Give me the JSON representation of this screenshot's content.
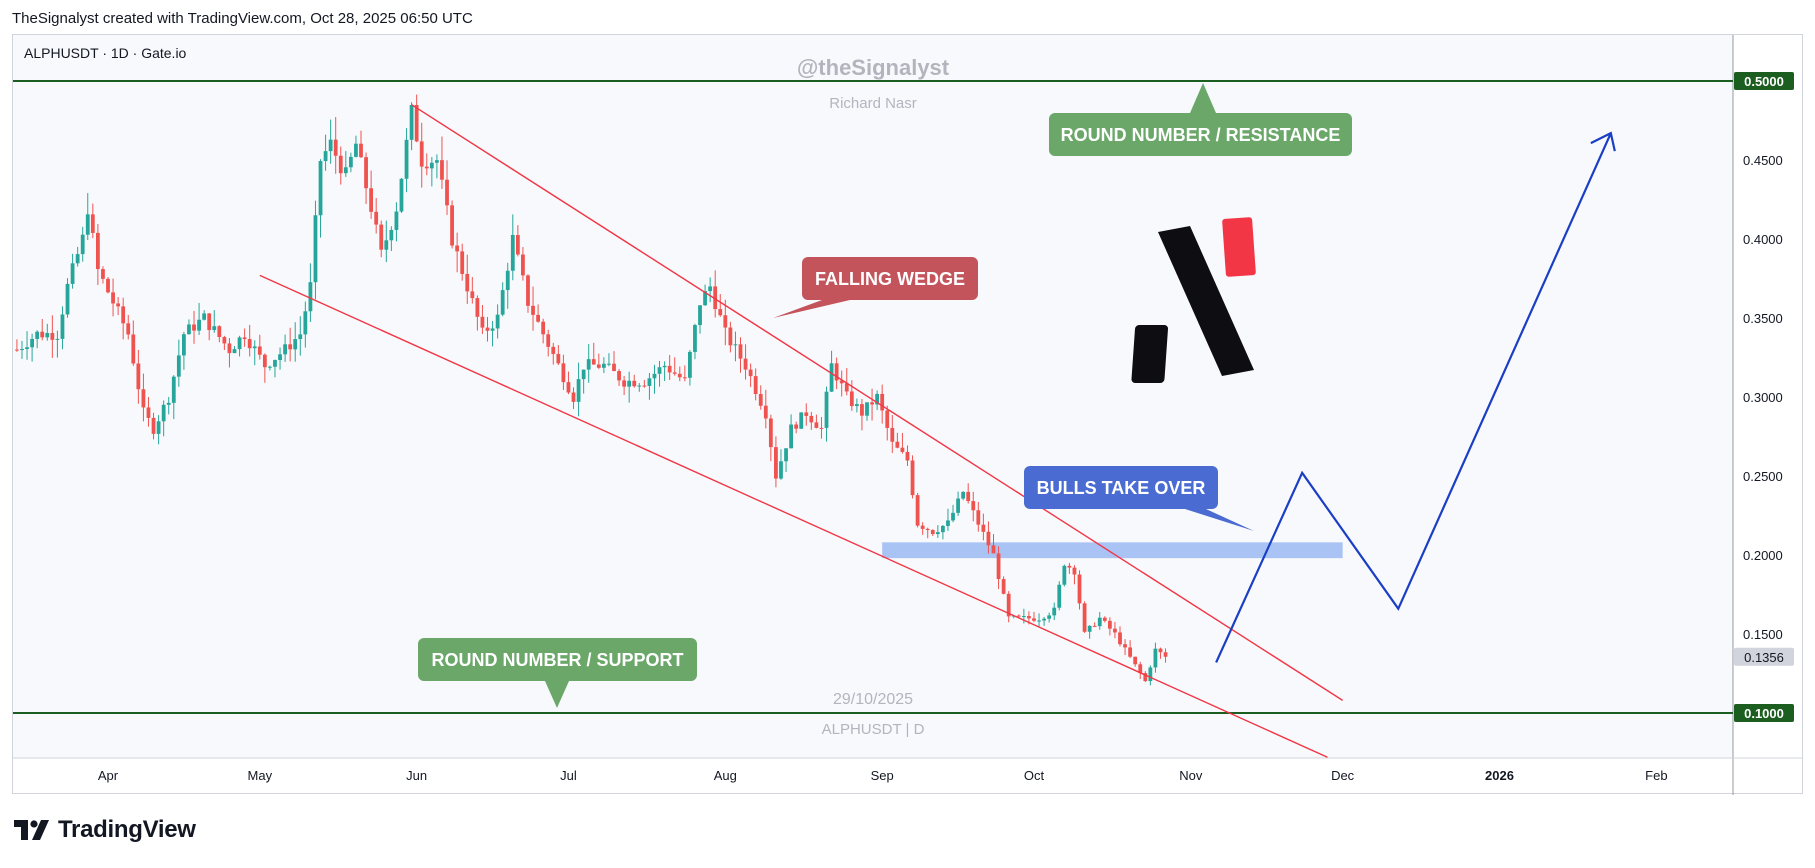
{
  "header": {
    "attribution": "TheSignalyst created with TradingView.com, Oct 28, 2025 06:50 UTC"
  },
  "footer": {
    "brand": "TradingView"
  },
  "chart_data": {
    "type": "candlestick",
    "symbol_label": "ALPHUSDT · 1D · Gate.io",
    "watermark": {
      "handle": "@theSignalyst",
      "author": "Richard Nasr",
      "date": "29/10/2025",
      "symbol": "ALPHUSDT | D"
    },
    "ylim": [
      0.072,
      0.55
    ],
    "price_scale": {
      "ticks": [
        "0.1500",
        "0.2000",
        "0.2500",
        "0.3000",
        "0.3500",
        "0.4000",
        "0.4500"
      ],
      "tick_values": [
        0.15,
        0.2,
        0.25,
        0.3,
        0.35,
        0.4,
        0.45
      ],
      "badges": [
        {
          "label": "0.5000",
          "value": 0.5,
          "color": "#1b5e20"
        },
        {
          "label": "0.1356",
          "value": 0.1356,
          "color": "#d1d4dc"
        },
        {
          "label": "0.1000",
          "value": 0.1,
          "color": "#1b5e20"
        }
      ]
    },
    "x_axis": {
      "labels": [
        "Apr",
        "May",
        "Jun",
        "Jul",
        "Aug",
        "Sep",
        "Oct",
        "Nov",
        "Dec",
        "2026",
        "Feb"
      ],
      "dates": [
        "2025-04-01",
        "2025-05-01",
        "2025-06-01",
        "2025-07-01",
        "2025-08-01",
        "2025-09-01",
        "2025-10-01",
        "2025-11-01",
        "2025-12-01",
        "2026-01-01",
        "2026-02-01"
      ]
    },
    "candles_range": [
      "2025-03-14",
      "2025-10-27"
    ],
    "price_path": [
      [
        "2025-03-14",
        0.33
      ],
      [
        "2025-03-18",
        0.34
      ],
      [
        "2025-03-22",
        0.34
      ],
      [
        "2025-03-24",
        0.37
      ],
      [
        "2025-03-27",
        0.4
      ],
      [
        "2025-03-28",
        0.42
      ],
      [
        "2025-03-30",
        0.38
      ],
      [
        "2025-04-02",
        0.36
      ],
      [
        "2025-04-05",
        0.34
      ],
      [
        "2025-04-08",
        0.29
      ],
      [
        "2025-04-10",
        0.28
      ],
      [
        "2025-04-13",
        0.3
      ],
      [
        "2025-04-16",
        0.34
      ],
      [
        "2025-04-20",
        0.35
      ],
      [
        "2025-04-25",
        0.33
      ],
      [
        "2025-04-28",
        0.34
      ],
      [
        "2025-05-02",
        0.32
      ],
      [
        "2025-05-06",
        0.33
      ],
      [
        "2025-05-09",
        0.34
      ],
      [
        "2025-05-11",
        0.37
      ],
      [
        "2025-05-13",
        0.45
      ],
      [
        "2025-05-15",
        0.46
      ],
      [
        "2025-05-18",
        0.44
      ],
      [
        "2025-05-20",
        0.46
      ],
      [
        "2025-05-23",
        0.42
      ],
      [
        "2025-05-25",
        0.39
      ],
      [
        "2025-05-28",
        0.42
      ],
      [
        "2025-05-31",
        0.48
      ],
      [
        "2025-06-02",
        0.45
      ],
      [
        "2025-06-05",
        0.45
      ],
      [
        "2025-06-08",
        0.4
      ],
      [
        "2025-06-11",
        0.37
      ],
      [
        "2025-06-14",
        0.34
      ],
      [
        "2025-06-17",
        0.35
      ],
      [
        "2025-06-20",
        0.4
      ],
      [
        "2025-06-23",
        0.36
      ],
      [
        "2025-06-26",
        0.34
      ],
      [
        "2025-06-29",
        0.32
      ],
      [
        "2025-07-02",
        0.3
      ],
      [
        "2025-07-04",
        0.32
      ],
      [
        "2025-07-08",
        0.32
      ],
      [
        "2025-07-12",
        0.31
      ],
      [
        "2025-07-16",
        0.31
      ],
      [
        "2025-07-20",
        0.32
      ],
      [
        "2025-07-24",
        0.31
      ],
      [
        "2025-07-27",
        0.36
      ],
      [
        "2025-07-29",
        0.37
      ],
      [
        "2025-08-01",
        0.34
      ],
      [
        "2025-08-05",
        0.32
      ],
      [
        "2025-08-09",
        0.29
      ],
      [
        "2025-08-11",
        0.25
      ],
      [
        "2025-08-14",
        0.28
      ],
      [
        "2025-08-17",
        0.29
      ],
      [
        "2025-08-20",
        0.28
      ],
      [
        "2025-08-22",
        0.32
      ],
      [
        "2025-08-25",
        0.3
      ],
      [
        "2025-08-28",
        0.29
      ],
      [
        "2025-08-31",
        0.3
      ],
      [
        "2025-09-03",
        0.27
      ],
      [
        "2025-09-06",
        0.26
      ],
      [
        "2025-09-08",
        0.22
      ],
      [
        "2025-09-11",
        0.215
      ],
      [
        "2025-09-14",
        0.22
      ],
      [
        "2025-09-17",
        0.24
      ],
      [
        "2025-09-20",
        0.22
      ],
      [
        "2025-09-23",
        0.2
      ],
      [
        "2025-09-26",
        0.16
      ],
      [
        "2025-09-29",
        0.16
      ],
      [
        "2025-10-02",
        0.16
      ],
      [
        "2025-10-05",
        0.165
      ],
      [
        "2025-10-07",
        0.195
      ],
      [
        "2025-10-09",
        0.19
      ],
      [
        "2025-10-11",
        0.15
      ],
      [
        "2025-10-14",
        0.16
      ],
      [
        "2025-10-17",
        0.15
      ],
      [
        "2025-10-20",
        0.135
      ],
      [
        "2025-10-23",
        0.12
      ],
      [
        "2025-10-25",
        0.14
      ],
      [
        "2025-10-27",
        0.1356
      ]
    ],
    "levels": [
      {
        "name": "resistance",
        "value": 0.5,
        "color": "#1b5e20"
      },
      {
        "name": "support",
        "value": 0.1,
        "color": "#1b5e20"
      }
    ],
    "wedge": {
      "color": "#f23645",
      "upper": [
        [
          "2025-05-31",
          0.485
        ],
        [
          "2025-12-01",
          0.108
        ]
      ],
      "lower": [
        [
          "2025-05-01",
          0.377
        ],
        [
          "2025-11-28",
          0.072
        ]
      ]
    },
    "zone": {
      "from": "2025-09-01",
      "to": "2025-12-01",
      "low": 0.198,
      "high": 0.208,
      "color": "#5b8dee"
    },
    "projection": {
      "color": "#1a3fc4",
      "points": [
        [
          "2025-11-06",
          0.132
        ],
        [
          "2025-11-23",
          0.252
        ],
        [
          "2025-12-12",
          0.166
        ],
        [
          "2026-01-23",
          0.467
        ]
      ]
    },
    "callouts": [
      {
        "text": "ROUND NUMBER / RESISTANCE",
        "color": "#6aa769",
        "pointer": "up"
      },
      {
        "text": "FALLING WEDGE",
        "color": "#c4545b",
        "pointer": "down-left"
      },
      {
        "text": "BULLS TAKE OVER",
        "color": "#4a6bd1",
        "pointer": "down-right"
      },
      {
        "text": "ROUND NUMBER / SUPPORT",
        "color": "#6aa769",
        "pointer": "down"
      }
    ],
    "colors": {
      "up": "#26a69a",
      "down": "#ef5350",
      "bg": "#f8f9fc"
    }
  }
}
